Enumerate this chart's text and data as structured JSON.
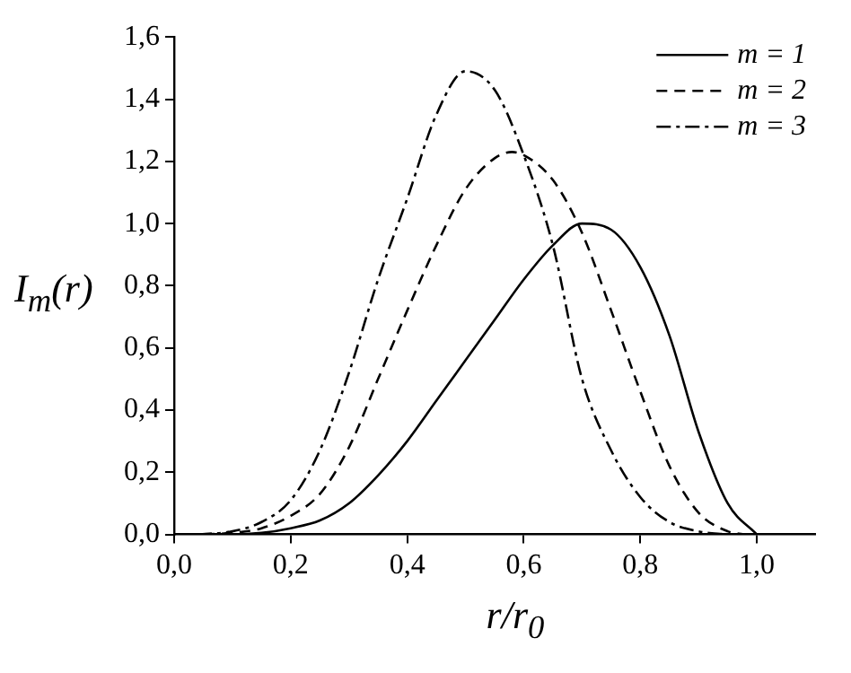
{
  "chart_data": {
    "type": "line",
    "xlabel": "r/r$_{0}$",
    "ylabel": "I$_{m}$(r)",
    "xlim": [
      0,
      1.1
    ],
    "xticks": [
      {
        "value": 0,
        "label": "0,0"
      },
      {
        "value": 0.2,
        "label": "0,2"
      },
      {
        "value": 0.4,
        "label": "0,4"
      },
      {
        "value": 0.6,
        "label": "0,6"
      },
      {
        "value": 0.8,
        "label": "0,8"
      },
      {
        "value": 1,
        "label": "1,0"
      }
    ],
    "ylim": [
      0,
      1.6
    ],
    "yticks": [
      {
        "value": 0,
        "label": "0,0"
      },
      {
        "value": 0.2,
        "label": "0,2"
      },
      {
        "value": 0.4,
        "label": "0,4"
      },
      {
        "value": 0.6,
        "label": "0,6"
      },
      {
        "value": 0.8,
        "label": "0,8"
      },
      {
        "value": 1,
        "label": "1,0"
      },
      {
        "value": 1.2,
        "label": "1,2"
      },
      {
        "value": 1.4,
        "label": "1,4"
      },
      {
        "value": 1.6,
        "label": "1,6"
      }
    ],
    "grid": false,
    "legend": "top right",
    "marker": "none",
    "series": [
      {
        "name": "m = 1",
        "color": "#000000",
        "line_style": "solid",
        "x": [
          0,
          0.1,
          0.15,
          0.2,
          0.25,
          0.3,
          0.35,
          0.4,
          0.45,
          0.5,
          0.55,
          0.6,
          0.65,
          0.7,
          0.75,
          0.8,
          0.85,
          0.9,
          0.95,
          1.0
        ],
        "values": [
          0,
          0,
          0.005,
          0.02,
          0.045,
          0.1,
          0.19,
          0.3,
          0.43,
          0.56,
          0.69,
          0.82,
          0.93,
          1.0,
          0.98,
          0.86,
          0.64,
          0.33,
          0.1,
          0
        ]
      },
      {
        "name": "m = 2",
        "color": "#000000",
        "line_style": "dashed",
        "x": [
          0.02,
          0.1,
          0.15,
          0.2,
          0.25,
          0.3,
          0.35,
          0.4,
          0.45,
          0.5,
          0.55,
          0.58,
          0.6,
          0.65,
          0.7,
          0.75,
          0.8,
          0.85,
          0.9,
          0.95,
          0.98
        ],
        "values": [
          0,
          0.005,
          0.02,
          0.06,
          0.13,
          0.28,
          0.5,
          0.72,
          0.93,
          1.11,
          1.21,
          1.23,
          1.22,
          1.14,
          0.97,
          0.72,
          0.46,
          0.22,
          0.07,
          0.01,
          0
        ]
      },
      {
        "name": "m = 3",
        "color": "#000000",
        "line_style": "dashdot",
        "x": [
          0.04,
          0.1,
          0.15,
          0.2,
          0.25,
          0.3,
          0.35,
          0.4,
          0.45,
          0.5,
          0.55,
          0.6,
          0.65,
          0.7,
          0.75,
          0.8,
          0.85,
          0.9,
          0.95
        ],
        "values": [
          0,
          0.01,
          0.04,
          0.11,
          0.27,
          0.52,
          0.82,
          1.08,
          1.35,
          1.49,
          1.43,
          1.22,
          0.93,
          0.5,
          0.27,
          0.12,
          0.04,
          0.01,
          0
        ]
      }
    ]
  }
}
